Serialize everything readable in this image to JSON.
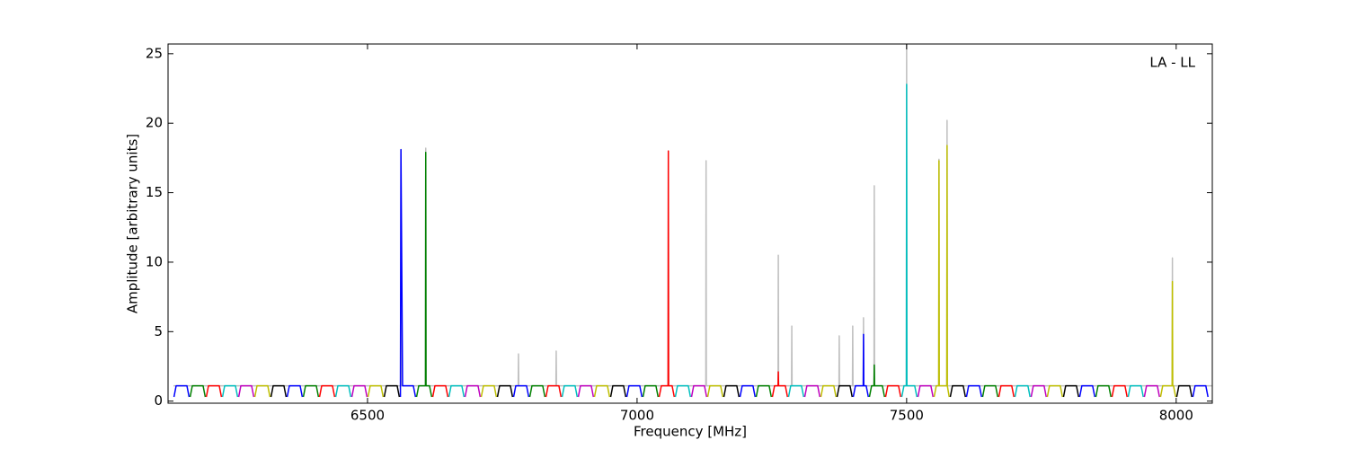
{
  "chart_data": {
    "type": "line",
    "x_label": "Frequency [MHz]",
    "y_label": "Amplitude [arbitrary units]",
    "annotation": "LA - LL",
    "xlim": [
      6130,
      8067
    ],
    "ylim": [
      -0.15,
      25.7
    ],
    "xticks": [
      6500,
      7000,
      7500,
      8000
    ],
    "yticks": [
      0,
      5,
      10,
      15,
      20,
      25
    ],
    "series": [
      {
        "color": "#bfbfbf",
        "x": [
          6140,
          6561.5,
          6562,
          6562.5,
          6607.5,
          6608,
          6608.5,
          6779.5,
          6780,
          6780.5,
          6849.5,
          6850,
          6850.5,
          7057.5,
          7058,
          7058.5,
          7127.5,
          7128,
          7128.5,
          7261.5,
          7262,
          7262.5,
          7286.5,
          7287,
          7287.5,
          7374.5,
          7375,
          7375.5,
          7399.5,
          7400,
          7400.5,
          7419.5,
          7420,
          7420.5,
          7439.5,
          7440,
          7440.5,
          7499.5,
          7500,
          7500.5,
          7559.5,
          7560,
          7560.5,
          7574.5,
          7575,
          7575.5,
          7992.5,
          7993,
          7993.5,
          8067
        ],
        "values": [
          1.1,
          1.1,
          18.1,
          1.1,
          1.1,
          18.2,
          1.1,
          1.1,
          3.4,
          1.1,
          1.1,
          3.6,
          1.1,
          1.1,
          18,
          1.1,
          1.1,
          17.3,
          1.1,
          1.1,
          10.5,
          1.1,
          1.1,
          5.4,
          1.1,
          1.1,
          4.7,
          1.1,
          1.1,
          5.4,
          1.1,
          1.1,
          6,
          1.1,
          1.1,
          15.5,
          1.1,
          1.1,
          25.7,
          1.1,
          1.1,
          17.4,
          1.1,
          1.1,
          20.2,
          1.1,
          1.1,
          10.3,
          1.1,
          1.1
        ]
      },
      {
        "color": "#0000ff",
        "x": [
          6141,
          6145,
          6165,
          6169,
          6170,
          6351,
          6355,
          6375,
          6379,
          6380,
          6561,
          6562,
          6565,
          6585,
          6589,
          6590,
          6771,
          6775,
          6795,
          6799,
          6800,
          6981,
          6985,
          7005,
          7009,
          7010,
          7191,
          7195,
          7215,
          7219,
          7220,
          7401,
          7405,
          7419.5,
          7420,
          7420.5,
          7425,
          7429,
          7430,
          7611,
          7615,
          7635,
          7639,
          7640,
          7821,
          7825,
          7845,
          7849,
          7850,
          8031,
          8035,
          8055,
          8059
        ],
        "values": [
          0.3,
          1.1,
          1.1,
          0.3,
          null,
          0.3,
          1.1,
          1.1,
          0.3,
          null,
          0.3,
          18.1,
          1.1,
          1.1,
          0.3,
          null,
          0.3,
          1.1,
          1.1,
          0.3,
          null,
          0.3,
          1.1,
          1.1,
          0.3,
          null,
          0.3,
          1.1,
          1.1,
          0.3,
          null,
          0.3,
          1.1,
          1.1,
          4.8,
          1.1,
          1.1,
          0.3,
          null,
          0.3,
          1.1,
          1.1,
          0.3,
          null,
          0.3,
          1.1,
          1.1,
          0.3,
          null,
          0.3,
          1.1,
          1.1,
          0.3
        ]
      },
      {
        "color": "#008000",
        "x": [
          6171,
          6175,
          6195,
          6199,
          6200,
          6381,
          6385,
          6405,
          6409,
          6410,
          6591,
          6595,
          6607.5,
          6608,
          6608.5,
          6615,
          6619,
          6620,
          6801,
          6805,
          6825,
          6829,
          6830,
          7011,
          7015,
          7035,
          7039,
          7040,
          7221,
          7225,
          7245,
          7249,
          7250,
          7431,
          7435,
          7439.5,
          7440,
          7440.5,
          7455,
          7459,
          7460,
          7641,
          7645,
          7665,
          7669,
          7670,
          7851,
          7855,
          7875,
          7879
        ],
        "values": [
          0.3,
          1.1,
          1.1,
          0.3,
          null,
          0.3,
          1.1,
          1.1,
          0.3,
          null,
          0.3,
          1.1,
          1.1,
          17.9,
          1.1,
          1.1,
          0.3,
          null,
          0.3,
          1.1,
          1.1,
          0.3,
          null,
          0.3,
          1.1,
          1.1,
          0.3,
          null,
          0.3,
          1.1,
          1.1,
          0.3,
          null,
          0.3,
          1.1,
          1.1,
          2.6,
          1.1,
          1.1,
          0.3,
          null,
          0.3,
          1.1,
          1.1,
          0.3,
          null,
          0.3,
          1.1,
          1.1,
          0.3
        ]
      },
      {
        "color": "#ff0000",
        "x": [
          6201,
          6205,
          6225,
          6229,
          6230,
          6411,
          6415,
          6435,
          6439,
          6440,
          6621,
          6625,
          6645,
          6649,
          6650,
          6831,
          6835,
          6855,
          6859,
          6860,
          7041,
          7045,
          7057.5,
          7058,
          7058.5,
          7065,
          7069,
          7070,
          7251,
          7255,
          7261.5,
          7262,
          7262.5,
          7275,
          7279,
          7280,
          7461,
          7465,
          7485,
          7489,
          7490,
          7671,
          7675,
          7695,
          7699,
          7700,
          7881,
          7885,
          7905,
          7909
        ],
        "values": [
          0.3,
          1.1,
          1.1,
          0.3,
          null,
          0.3,
          1.1,
          1.1,
          0.3,
          null,
          0.3,
          1.1,
          1.1,
          0.3,
          null,
          0.3,
          1.1,
          1.1,
          0.3,
          null,
          0.3,
          1.1,
          1.1,
          18,
          1.1,
          1.1,
          0.3,
          null,
          0.3,
          1.1,
          1.1,
          2.1,
          1.1,
          1.1,
          0.3,
          null,
          0.3,
          1.1,
          1.1,
          0.3,
          null,
          0.3,
          1.1,
          1.1,
          0.3,
          null,
          0.3,
          1.1,
          1.1,
          0.3
        ]
      },
      {
        "color": "#00bfbf",
        "x": [
          6231,
          6235,
          6255,
          6259,
          6260,
          6441,
          6445,
          6465,
          6469,
          6470,
          6651,
          6655,
          6675,
          6679,
          6680,
          6861,
          6865,
          6885,
          6889,
          6890,
          7071,
          7075,
          7095,
          7099,
          7100,
          7281,
          7285,
          7305,
          7309,
          7310,
          7491,
          7495,
          7499.5,
          7500,
          7500.5,
          7515,
          7519,
          7520,
          7701,
          7705,
          7725,
          7729,
          7730,
          7911,
          7915,
          7935,
          7939
        ],
        "values": [
          0.3,
          1.1,
          1.1,
          0.3,
          null,
          0.3,
          1.1,
          1.1,
          0.3,
          null,
          0.3,
          1.1,
          1.1,
          0.3,
          null,
          0.3,
          1.1,
          1.1,
          0.3,
          null,
          0.3,
          1.1,
          1.1,
          0.3,
          null,
          0.3,
          1.1,
          1.1,
          0.3,
          null,
          0.3,
          1.1,
          1.1,
          22.8,
          1.1,
          1.1,
          0.3,
          null,
          0.3,
          1.1,
          1.1,
          0.3,
          null,
          0.3,
          1.1,
          1.1,
          0.3
        ]
      },
      {
        "color": "#bf00bf",
        "x": [
          6261,
          6265,
          6285,
          6289,
          6290,
          6471,
          6475,
          6495,
          6499,
          6500,
          6681,
          6685,
          6705,
          6709,
          6710,
          6891,
          6895,
          6915,
          6919,
          6920,
          7101,
          7105,
          7125,
          7129,
          7130,
          7311,
          7315,
          7335,
          7339,
          7340,
          7521,
          7525,
          7545,
          7549,
          7550,
          7731,
          7735,
          7755,
          7759,
          7760,
          7941,
          7945,
          7965,
          7969
        ],
        "values": [
          0.3,
          1.1,
          1.1,
          0.3,
          null,
          0.3,
          1.1,
          1.1,
          0.3,
          null,
          0.3,
          1.1,
          1.1,
          0.3,
          null,
          0.3,
          1.1,
          1.1,
          0.3,
          null,
          0.3,
          1.1,
          1.1,
          0.3,
          null,
          0.3,
          1.1,
          1.1,
          0.3,
          null,
          0.3,
          1.1,
          1.1,
          0.3,
          null,
          0.3,
          1.1,
          1.1,
          0.3,
          null,
          0.3,
          1.1,
          1.1,
          0.3
        ]
      },
      {
        "color": "#bfbf00",
        "x": [
          6291,
          6295,
          6315,
          6319,
          6320,
          6501,
          6505,
          6525,
          6529,
          6530,
          6711,
          6715,
          6735,
          6739,
          6740,
          6921,
          6925,
          6945,
          6949,
          6950,
          7131,
          7135,
          7155,
          7159,
          7160,
          7341,
          7345,
          7365,
          7369,
          7370,
          7551,
          7555,
          7559.5,
          7560,
          7560.5,
          7574.5,
          7575,
          7575.5,
          7579,
          7580,
          7761,
          7765,
          7785,
          7789,
          7790,
          7971,
          7975,
          7992.5,
          7993,
          7993.5,
          7995,
          7999
        ],
        "values": [
          0.3,
          1.1,
          1.1,
          0.3,
          null,
          0.3,
          1.1,
          1.1,
          0.3,
          null,
          0.3,
          1.1,
          1.1,
          0.3,
          null,
          0.3,
          1.1,
          1.1,
          0.3,
          null,
          0.3,
          1.1,
          1.1,
          0.3,
          null,
          0.3,
          1.1,
          1.1,
          0.3,
          null,
          0.3,
          1.1,
          1.1,
          17.3,
          1.1,
          1.1,
          18.4,
          1.1,
          0.3,
          null,
          0.3,
          1.1,
          1.1,
          0.3,
          null,
          0.3,
          1.1,
          1.1,
          8.6,
          1.1,
          1.1,
          0.3
        ]
      },
      {
        "color": "#000000",
        "x": [
          6321,
          6325,
          6345,
          6349,
          6350,
          6531,
          6535,
          6555,
          6559,
          6560,
          6741,
          6745,
          6765,
          6769,
          6770,
          6951,
          6955,
          6975,
          6979,
          6980,
          7161,
          7165,
          7185,
          7189,
          7190,
          7371,
          7375,
          7395,
          7399,
          7400,
          7581,
          7585,
          7605,
          7609,
          7610,
          7791,
          7795,
          7815,
          7819,
          7820,
          8001,
          8005,
          8025,
          8029
        ],
        "values": [
          0.3,
          1.1,
          1.1,
          0.3,
          null,
          0.3,
          1.1,
          1.1,
          0.3,
          null,
          0.3,
          1.1,
          1.1,
          0.3,
          null,
          0.3,
          1.1,
          1.1,
          0.3,
          null,
          0.3,
          1.1,
          1.1,
          0.3,
          null,
          0.3,
          1.1,
          1.1,
          0.3,
          null,
          0.3,
          1.1,
          1.1,
          0.3,
          null,
          0.3,
          1.1,
          1.1,
          0.3,
          null,
          0.3,
          1.1,
          1.1,
          0.3
        ]
      }
    ]
  }
}
